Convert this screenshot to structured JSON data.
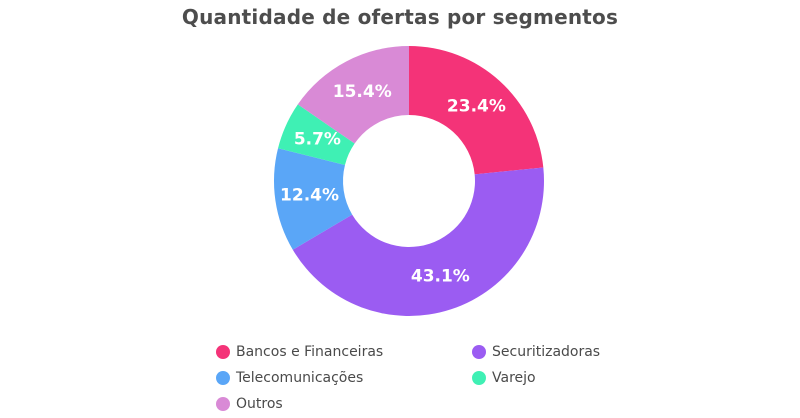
{
  "chart_data": {
    "type": "pie",
    "subtype": "donut",
    "title": "Quantidade de ofertas por segmentos",
    "categories": [
      "Bancos e Financeiras",
      "Securitizadoras",
      "Telecomunicações",
      "Varejo",
      "Outros"
    ],
    "values": [
      23.4,
      43.1,
      12.4,
      5.7,
      15.4
    ],
    "labels": [
      "23.4%",
      "43.1%",
      "12.4%",
      "5.7%",
      "15.4%"
    ],
    "colors": [
      "#f43378",
      "#9b5cf2",
      "#5aa6f7",
      "#3ff0b4",
      "#d98ad6"
    ],
    "unit": "%",
    "start_angle": "12 o'clock, clockwise",
    "legend_position": "bottom",
    "legend": [
      {
        "label": "Bancos e Financeiras",
        "color": "#f43378"
      },
      {
        "label": "Securitizadoras",
        "color": "#9b5cf2"
      },
      {
        "label": "Telecomunicações",
        "color": "#5aa6f7"
      },
      {
        "label": "Varejo",
        "color": "#3ff0b4"
      },
      {
        "label": "Outros",
        "color": "#d98ad6"
      }
    ]
  }
}
